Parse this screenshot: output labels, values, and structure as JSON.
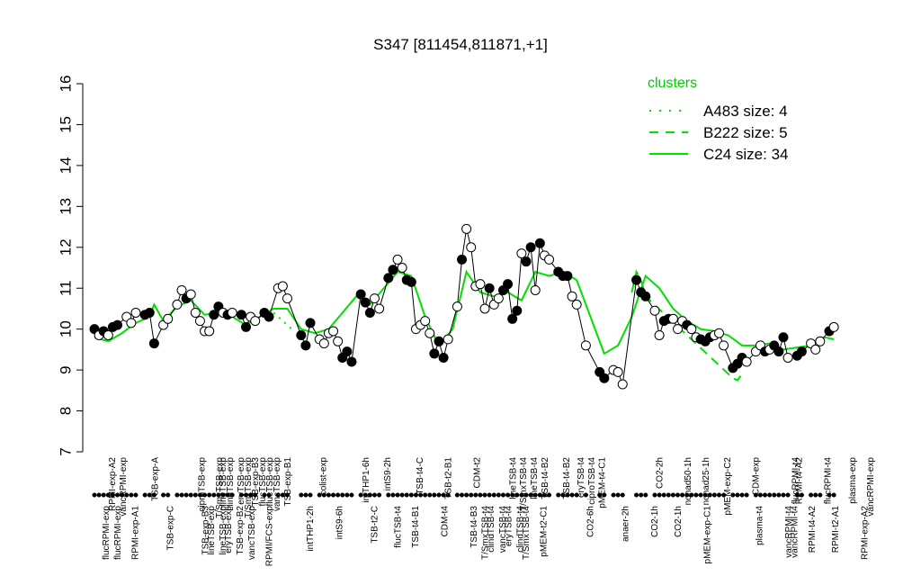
{
  "chart_data": {
    "type": "line",
    "title": "S347 [811454,811871,+1]",
    "ylim": [
      7,
      16
    ],
    "yticks": [
      "7",
      "8",
      "9",
      "10",
      "11",
      "12",
      "13",
      "14",
      "15",
      "16"
    ],
    "xlim": [
      1,
      170
    ],
    "top_labels": [
      {
        "x": 6,
        "label": "RPMI-exp-A2"
      },
      {
        "x": 9,
        "label": "vancRPMI-exp"
      },
      {
        "x": 18,
        "label": "TSB-exp-A"
      },
      {
        "x": 31,
        "label": "ciproTSB-exp"
      },
      {
        "x": 36,
        "label": "T/SmxTSB-exp"
      },
      {
        "x": 37,
        "label": "lineTSB-exp"
      },
      {
        "x": 39,
        "label": "clindTSB-exp"
      },
      {
        "x": 42,
        "label": "eryTSB-exp"
      },
      {
        "x": 44,
        "label": "T/SmxTSB-exp"
      },
      {
        "x": 46,
        "label": "TSB-exp-B3"
      },
      {
        "x": 48,
        "label": "flucTSB-exp"
      },
      {
        "x": 50,
        "label": "flucTSB-exp"
      },
      {
        "x": 52,
        "label": "vancTSB-exp"
      },
      {
        "x": 55,
        "label": "TSB-exp-B1"
      },
      {
        "x": 65,
        "label": "colist-exp"
      },
      {
        "x": 77,
        "label": "intTHP1-6h"
      },
      {
        "x": 83,
        "label": "intS9-2h"
      },
      {
        "x": 92,
        "label": "TSB-t4-C"
      },
      {
        "x": 100,
        "label": "TSB-t2-B1"
      },
      {
        "x": 108,
        "label": "CDM-t2"
      },
      {
        "x": 118,
        "label": "lineTSB-t4"
      },
      {
        "x": 121,
        "label": "T/SmxTSB-t4"
      },
      {
        "x": 124,
        "label": "lineTSB-t4"
      },
      {
        "x": 127,
        "label": "TSB-t4-B2"
      },
      {
        "x": 133,
        "label": "TSB-t4-B2"
      },
      {
        "x": 137,
        "label": "eryTSB-t4"
      },
      {
        "x": 140,
        "label": "ciproTSB-t4"
      },
      {
        "x": 143,
        "label": "pMEM-t4-C1"
      },
      {
        "x": 159,
        "label": "CO2-2h"
      },
      {
        "x": 167,
        "label": "nonad50-1h"
      },
      {
        "x": 172,
        "label": "nonad25-1h"
      },
      {
        "x": 178,
        "label": "pMEM-exp-C2"
      },
      {
        "x": 186,
        "label": "CDM-exp"
      },
      {
        "x": 197,
        "label": "flucRPMI-t4"
      },
      {
        "x": 198,
        "label": "RPMI-t4-A2"
      },
      {
        "x": 206,
        "label": "flucRPMI-t4"
      },
      {
        "x": 213,
        "label": "plasma-exp"
      },
      {
        "x": 218,
        "label": "vancRPMI-exp"
      }
    ],
    "bottom_labels": [
      {
        "x": 3,
        "label": "flucRPMI-exp"
      },
      {
        "x": 5,
        "label": "flucRPMI-exp"
      },
      {
        "x": 8,
        "label": "RPMI-exp-A1"
      },
      {
        "x": 14,
        "label": "TSB-exp-C"
      },
      {
        "x": 20,
        "label": "TSB-exp-B3"
      },
      {
        "x": 21,
        "label": "lineTSB-exp"
      },
      {
        "x": 23,
        "label": "lineTSB-exp"
      },
      {
        "x": 24,
        "label": "eryTSB-exp"
      },
      {
        "x": 26,
        "label": "TSB-exp-B2"
      },
      {
        "x": 28,
        "label": "vancTSB-exp"
      },
      {
        "x": 31,
        "label": "RPMI/FCS-exp"
      },
      {
        "x": 38,
        "label": "intTHP1-2h"
      },
      {
        "x": 43,
        "label": "intS9-6h"
      },
      {
        "x": 49,
        "label": "TSB-t2-C"
      },
      {
        "x": 53,
        "label": "flucTSB-t4"
      },
      {
        "x": 56,
        "label": "TSB-t4-B1"
      },
      {
        "x": 61,
        "label": "CDM-t4"
      },
      {
        "x": 66,
        "label": "TSB-t4-B3"
      },
      {
        "x": 68,
        "label": "T/SmxTSB-t4"
      },
      {
        "x": 69,
        "label": "clindTSB-t4"
      },
      {
        "x": 71,
        "label": "vancTSB-t4"
      },
      {
        "x": 72,
        "label": "eryTSB-t4"
      },
      {
        "x": 74,
        "label": "clindTSB-t4"
      },
      {
        "x": 75,
        "label": "T/SmxTSB-t4"
      },
      {
        "x": 78,
        "label": "pMEM-t2-C1"
      },
      {
        "x": 86,
        "label": "CO2-6h"
      },
      {
        "x": 92,
        "label": "anaer-2h"
      },
      {
        "x": 97,
        "label": "CO2-1h"
      },
      {
        "x": 101,
        "label": "CO2-1h"
      },
      {
        "x": 106,
        "label": "pMEM-exp-C1"
      },
      {
        "x": 115,
        "label": "plasma-t4"
      },
      {
        "x": 120,
        "label": "vancRPMI-t4"
      },
      {
        "x": 121,
        "label": "vancRPMI-t4"
      },
      {
        "x": 124,
        "label": "RPMI-t4-A2"
      },
      {
        "x": 128,
        "label": "RPMI-t2-A1"
      },
      {
        "x": 133,
        "label": "RPMI-exp-A2"
      }
    ],
    "points": [
      {
        "x": 1,
        "y": 10.0,
        "f": 1
      },
      {
        "x": 2,
        "y": 9.85,
        "f": 0
      },
      {
        "x": 3,
        "y": 9.95,
        "f": 1
      },
      {
        "x": 4,
        "y": 9.85,
        "f": 0
      },
      {
        "x": 5,
        "y": 10.05,
        "f": 1
      },
      {
        "x": 6,
        "y": 10.1,
        "f": 1
      },
      {
        "x": 8,
        "y": 10.3,
        "f": 0
      },
      {
        "x": 9,
        "y": 10.15,
        "f": 0
      },
      {
        "x": 10,
        "y": 10.4,
        "f": 0
      },
      {
        "x": 12,
        "y": 10.35,
        "f": 1
      },
      {
        "x": 13,
        "y": 10.4,
        "f": 1
      },
      {
        "x": 14,
        "y": 9.65,
        "f": 1
      },
      {
        "x": 16,
        "y": 10.1,
        "f": 0
      },
      {
        "x": 17,
        "y": 10.25,
        "f": 0
      },
      {
        "x": 19,
        "y": 10.6,
        "f": 0
      },
      {
        "x": 20,
        "y": 10.95,
        "f": 0
      },
      {
        "x": 21,
        "y": 10.75,
        "f": 1
      },
      {
        "x": 22,
        "y": 10.85,
        "f": 0
      },
      {
        "x": 23,
        "y": 10.4,
        "f": 0
      },
      {
        "x": 24,
        "y": 10.2,
        "f": 0
      },
      {
        "x": 25,
        "y": 9.95,
        "f": 0
      },
      {
        "x": 26,
        "y": 9.95,
        "f": 0
      },
      {
        "x": 27,
        "y": 10.35,
        "f": 1
      },
      {
        "x": 28,
        "y": 10.55,
        "f": 1
      },
      {
        "x": 29,
        "y": 10.4,
        "f": 0
      },
      {
        "x": 30,
        "y": 10.35,
        "f": 1
      },
      {
        "x": 31,
        "y": 10.4,
        "f": 0
      },
      {
        "x": 33,
        "y": 10.35,
        "f": 1
      },
      {
        "x": 34,
        "y": 10.05,
        "f": 1
      },
      {
        "x": 35,
        "y": 10.3,
        "f": 0
      },
      {
        "x": 36,
        "y": 10.2,
        "f": 0
      },
      {
        "x": 38,
        "y": 10.4,
        "f": 1
      },
      {
        "x": 39,
        "y": 10.3,
        "f": 1
      },
      {
        "x": 41,
        "y": 11.0,
        "f": 0
      },
      {
        "x": 42,
        "y": 11.05,
        "f": 0
      },
      {
        "x": 43,
        "y": 10.75,
        "f": 0
      },
      {
        "x": 46,
        "y": 9.85,
        "f": 1
      },
      {
        "x": 47,
        "y": 9.6,
        "f": 1
      },
      {
        "x": 48,
        "y": 10.15,
        "f": 1
      },
      {
        "x": 50,
        "y": 9.75,
        "f": 0
      },
      {
        "x": 51,
        "y": 9.65,
        "f": 0
      },
      {
        "x": 52,
        "y": 9.9,
        "f": 0
      },
      {
        "x": 53,
        "y": 9.95,
        "f": 0
      },
      {
        "x": 54,
        "y": 9.7,
        "f": 0
      },
      {
        "x": 55,
        "y": 9.3,
        "f": 1
      },
      {
        "x": 56,
        "y": 9.45,
        "f": 1
      },
      {
        "x": 57,
        "y": 9.2,
        "f": 1
      },
      {
        "x": 59,
        "y": 10.85,
        "f": 1
      },
      {
        "x": 60,
        "y": 10.65,
        "f": 1
      },
      {
        "x": 61,
        "y": 10.4,
        "f": 1
      },
      {
        "x": 62,
        "y": 10.75,
        "f": 0
      },
      {
        "x": 63,
        "y": 10.5,
        "f": 0
      },
      {
        "x": 65,
        "y": 11.25,
        "f": 1
      },
      {
        "x": 66,
        "y": 11.45,
        "f": 1
      },
      {
        "x": 67,
        "y": 11.7,
        "f": 0
      },
      {
        "x": 68,
        "y": 11.5,
        "f": 0
      },
      {
        "x": 69,
        "y": 11.2,
        "f": 1
      },
      {
        "x": 70,
        "y": 11.15,
        "f": 1
      },
      {
        "x": 71,
        "y": 10.0,
        "f": 0
      },
      {
        "x": 72,
        "y": 10.1,
        "f": 0
      },
      {
        "x": 73,
        "y": 10.2,
        "f": 0
      },
      {
        "x": 74,
        "y": 9.9,
        "f": 0
      },
      {
        "x": 75,
        "y": 9.4,
        "f": 1
      },
      {
        "x": 76,
        "y": 9.7,
        "f": 1
      },
      {
        "x": 77,
        "y": 9.3,
        "f": 1
      },
      {
        "x": 78,
        "y": 9.75,
        "f": 0
      },
      {
        "x": 80,
        "y": 10.55,
        "f": 0
      },
      {
        "x": 81,
        "y": 11.7,
        "f": 1
      },
      {
        "x": 82,
        "y": 12.45,
        "f": 0
      },
      {
        "x": 83,
        "y": 12.0,
        "f": 0
      },
      {
        "x": 84,
        "y": 11.05,
        "f": 0
      },
      {
        "x": 85,
        "y": 11.1,
        "f": 0
      },
      {
        "x": 86,
        "y": 10.5,
        "f": 0
      },
      {
        "x": 87,
        "y": 11.0,
        "f": 1
      },
      {
        "x": 88,
        "y": 10.6,
        "f": 0
      },
      {
        "x": 89,
        "y": 10.75,
        "f": 0
      },
      {
        "x": 90,
        "y": 10.95,
        "f": 1
      },
      {
        "x": 91,
        "y": 11.1,
        "f": 1
      },
      {
        "x": 92,
        "y": 10.25,
        "f": 1
      },
      {
        "x": 93,
        "y": 10.45,
        "f": 1
      },
      {
        "x": 94,
        "y": 11.85,
        "f": 0
      },
      {
        "x": 95,
        "y": 11.65,
        "f": 1
      },
      {
        "x": 96,
        "y": 12.0,
        "f": 1
      },
      {
        "x": 97,
        "y": 10.95,
        "f": 0
      },
      {
        "x": 98,
        "y": 12.1,
        "f": 1
      },
      {
        "x": 99,
        "y": 11.8,
        "f": 0
      },
      {
        "x": 100,
        "y": 11.7,
        "f": 0
      },
      {
        "x": 102,
        "y": 11.4,
        "f": 1
      },
      {
        "x": 103,
        "y": 11.3,
        "f": 1
      },
      {
        "x": 104,
        "y": 11.3,
        "f": 1
      },
      {
        "x": 105,
        "y": 10.8,
        "f": 0
      },
      {
        "x": 106,
        "y": 10.6,
        "f": 0
      },
      {
        "x": 108,
        "y": 9.6,
        "f": 0
      },
      {
        "x": 111,
        "y": 8.95,
        "f": 1
      },
      {
        "x": 112,
        "y": 8.8,
        "f": 1
      },
      {
        "x": 114,
        "y": 9.0,
        "f": 0
      },
      {
        "x": 115,
        "y": 8.95,
        "f": 0
      },
      {
        "x": 116,
        "y": 8.65,
        "f": 0
      },
      {
        "x": 119,
        "y": 11.2,
        "f": 1
      },
      {
        "x": 120,
        "y": 10.9,
        "f": 1
      },
      {
        "x": 121,
        "y": 10.8,
        "f": 1
      },
      {
        "x": 123,
        "y": 10.45,
        "f": 0
      },
      {
        "x": 124,
        "y": 9.85,
        "f": 0
      },
      {
        "x": 125,
        "y": 10.2,
        "f": 1
      },
      {
        "x": 126,
        "y": 10.25,
        "f": 1
      },
      {
        "x": 127,
        "y": 10.25,
        "f": 0
      },
      {
        "x": 128,
        "y": 10.0,
        "f": 0
      },
      {
        "x": 129,
        "y": 10.2,
        "f": 0
      },
      {
        "x": 130,
        "y": 10.1,
        "f": 1
      },
      {
        "x": 131,
        "y": 10.0,
        "f": 0
      },
      {
        "x": 132,
        "y": 9.8,
        "f": 0
      },
      {
        "x": 133,
        "y": 9.75,
        "f": 1
      },
      {
        "x": 134,
        "y": 9.7,
        "f": 1
      },
      {
        "x": 135,
        "y": 9.8,
        "f": 1
      },
      {
        "x": 136,
        "y": 9.85,
        "f": 0
      },
      {
        "x": 137,
        "y": 9.9,
        "f": 0
      },
      {
        "x": 138,
        "y": 9.6,
        "f": 0
      },
      {
        "x": 140,
        "y": 9.05,
        "f": 1
      },
      {
        "x": 141,
        "y": 9.15,
        "f": 1
      },
      {
        "x": 142,
        "y": 9.3,
        "f": 1
      },
      {
        "x": 143,
        "y": 9.2,
        "f": 0
      },
      {
        "x": 145,
        "y": 9.45,
        "f": 0
      },
      {
        "x": 146,
        "y": 9.6,
        "f": 0
      },
      {
        "x": 147,
        "y": 9.45,
        "f": 1
      },
      {
        "x": 148,
        "y": 9.5,
        "f": 0
      },
      {
        "x": 149,
        "y": 9.6,
        "f": 1
      },
      {
        "x": 150,
        "y": 9.45,
        "f": 1
      },
      {
        "x": 151,
        "y": 9.8,
        "f": 1
      },
      {
        "x": 152,
        "y": 9.3,
        "f": 0
      },
      {
        "x": 154,
        "y": 9.35,
        "f": 1
      },
      {
        "x": 155,
        "y": 9.45,
        "f": 1
      },
      {
        "x": 157,
        "y": 9.65,
        "f": 0
      },
      {
        "x": 158,
        "y": 9.5,
        "f": 0
      },
      {
        "x": 159,
        "y": 9.7,
        "f": 0
      },
      {
        "x": 161,
        "y": 9.95,
        "f": 1
      },
      {
        "x": 162,
        "y": 10.05,
        "f": 0
      }
    ],
    "series": [
      {
        "name": "C24 size: 34",
        "style": "solid",
        "color": "#00e000",
        "x": [
          1,
          4,
          7,
          10,
          13,
          14,
          16,
          19,
          22,
          25,
          28,
          31,
          34,
          37,
          40,
          43,
          46,
          49,
          52,
          55,
          58,
          61,
          64,
          67,
          70,
          73,
          76,
          79,
          82,
          85,
          88,
          91,
          94,
          97,
          100,
          103,
          106,
          109,
          112,
          115,
          118,
          121,
          124,
          127,
          130,
          133,
          136,
          139,
          142,
          145,
          148,
          151,
          154,
          157,
          160,
          162
        ],
        "y": [
          9.8,
          9.7,
          9.9,
          10.15,
          10.3,
          10.6,
          10.2,
          10.55,
          10.7,
          10.35,
          10.4,
          10.3,
          10.1,
          10.3,
          10.5,
          10.5,
          10.0,
          9.9,
          10.0,
          10.4,
          10.8,
          10.6,
          11.0,
          11.4,
          11.3,
          10.3,
          9.6,
          10.0,
          11.4,
          10.9,
          10.8,
          10.9,
          10.7,
          11.4,
          11.3,
          11.4,
          11.2,
          10.3,
          9.4,
          9.6,
          10.3,
          11.3,
          11.0,
          10.5,
          10.2,
          10.0,
          9.95,
          9.85,
          9.6,
          9.6,
          9.65,
          9.5,
          9.55,
          9.6,
          9.8,
          9.75
        ]
      },
      {
        "name": "B222 size: 5",
        "style": "dashed",
        "color": "#00e000",
        "x": [
          118,
          119,
          120,
          121,
          140,
          141,
          142
        ],
        "y": [
          10.9,
          11.4,
          11.2,
          10.8,
          8.8,
          8.75,
          8.9
        ]
      },
      {
        "name": "A483 size: 4",
        "style": "dotted",
        "color": "#00e000",
        "x": [
          40,
          41,
          42,
          43,
          44
        ],
        "y": [
          10.4,
          10.3,
          10.2,
          10.1,
          10.0
        ]
      }
    ],
    "legend": {
      "title": "clusters",
      "position": "top-right",
      "entries": [
        {
          "label": "A483 size: 4",
          "style": "dotted"
        },
        {
          "label": "B222 size: 5",
          "style": "dashed"
        },
        {
          "label": "C24 size: 34",
          "style": "solid"
        }
      ]
    },
    "rug": [
      1,
      2,
      3,
      4,
      5,
      6,
      7,
      8,
      9,
      10,
      12,
      13,
      14,
      16,
      17,
      19,
      20,
      21,
      22,
      23,
      24,
      25,
      26,
      27,
      28,
      29,
      30,
      31,
      33,
      34,
      35,
      36,
      38,
      39,
      41,
      42,
      43,
      46,
      47,
      48,
      50,
      51,
      52,
      53,
      54,
      55,
      56,
      57,
      59,
      60,
      61,
      62,
      63,
      65,
      66,
      67,
      68,
      69,
      70,
      71,
      72,
      73,
      74,
      75,
      76,
      77,
      78,
      80,
      81,
      82,
      83,
      84,
      85,
      86,
      87,
      88,
      89,
      90,
      91,
      92,
      93,
      94,
      95,
      96,
      97,
      98,
      99,
      100,
      102,
      103,
      104,
      105,
      106,
      108,
      111,
      112,
      114,
      115,
      116,
      119,
      120,
      121,
      123,
      124,
      125,
      126,
      127,
      128,
      129,
      130,
      131,
      132,
      133,
      134,
      135,
      136,
      137,
      138,
      140,
      141,
      142,
      143,
      145,
      146,
      147,
      148,
      149,
      150,
      151,
      152,
      154,
      155,
      157,
      158,
      159,
      161,
      162
    ]
  }
}
